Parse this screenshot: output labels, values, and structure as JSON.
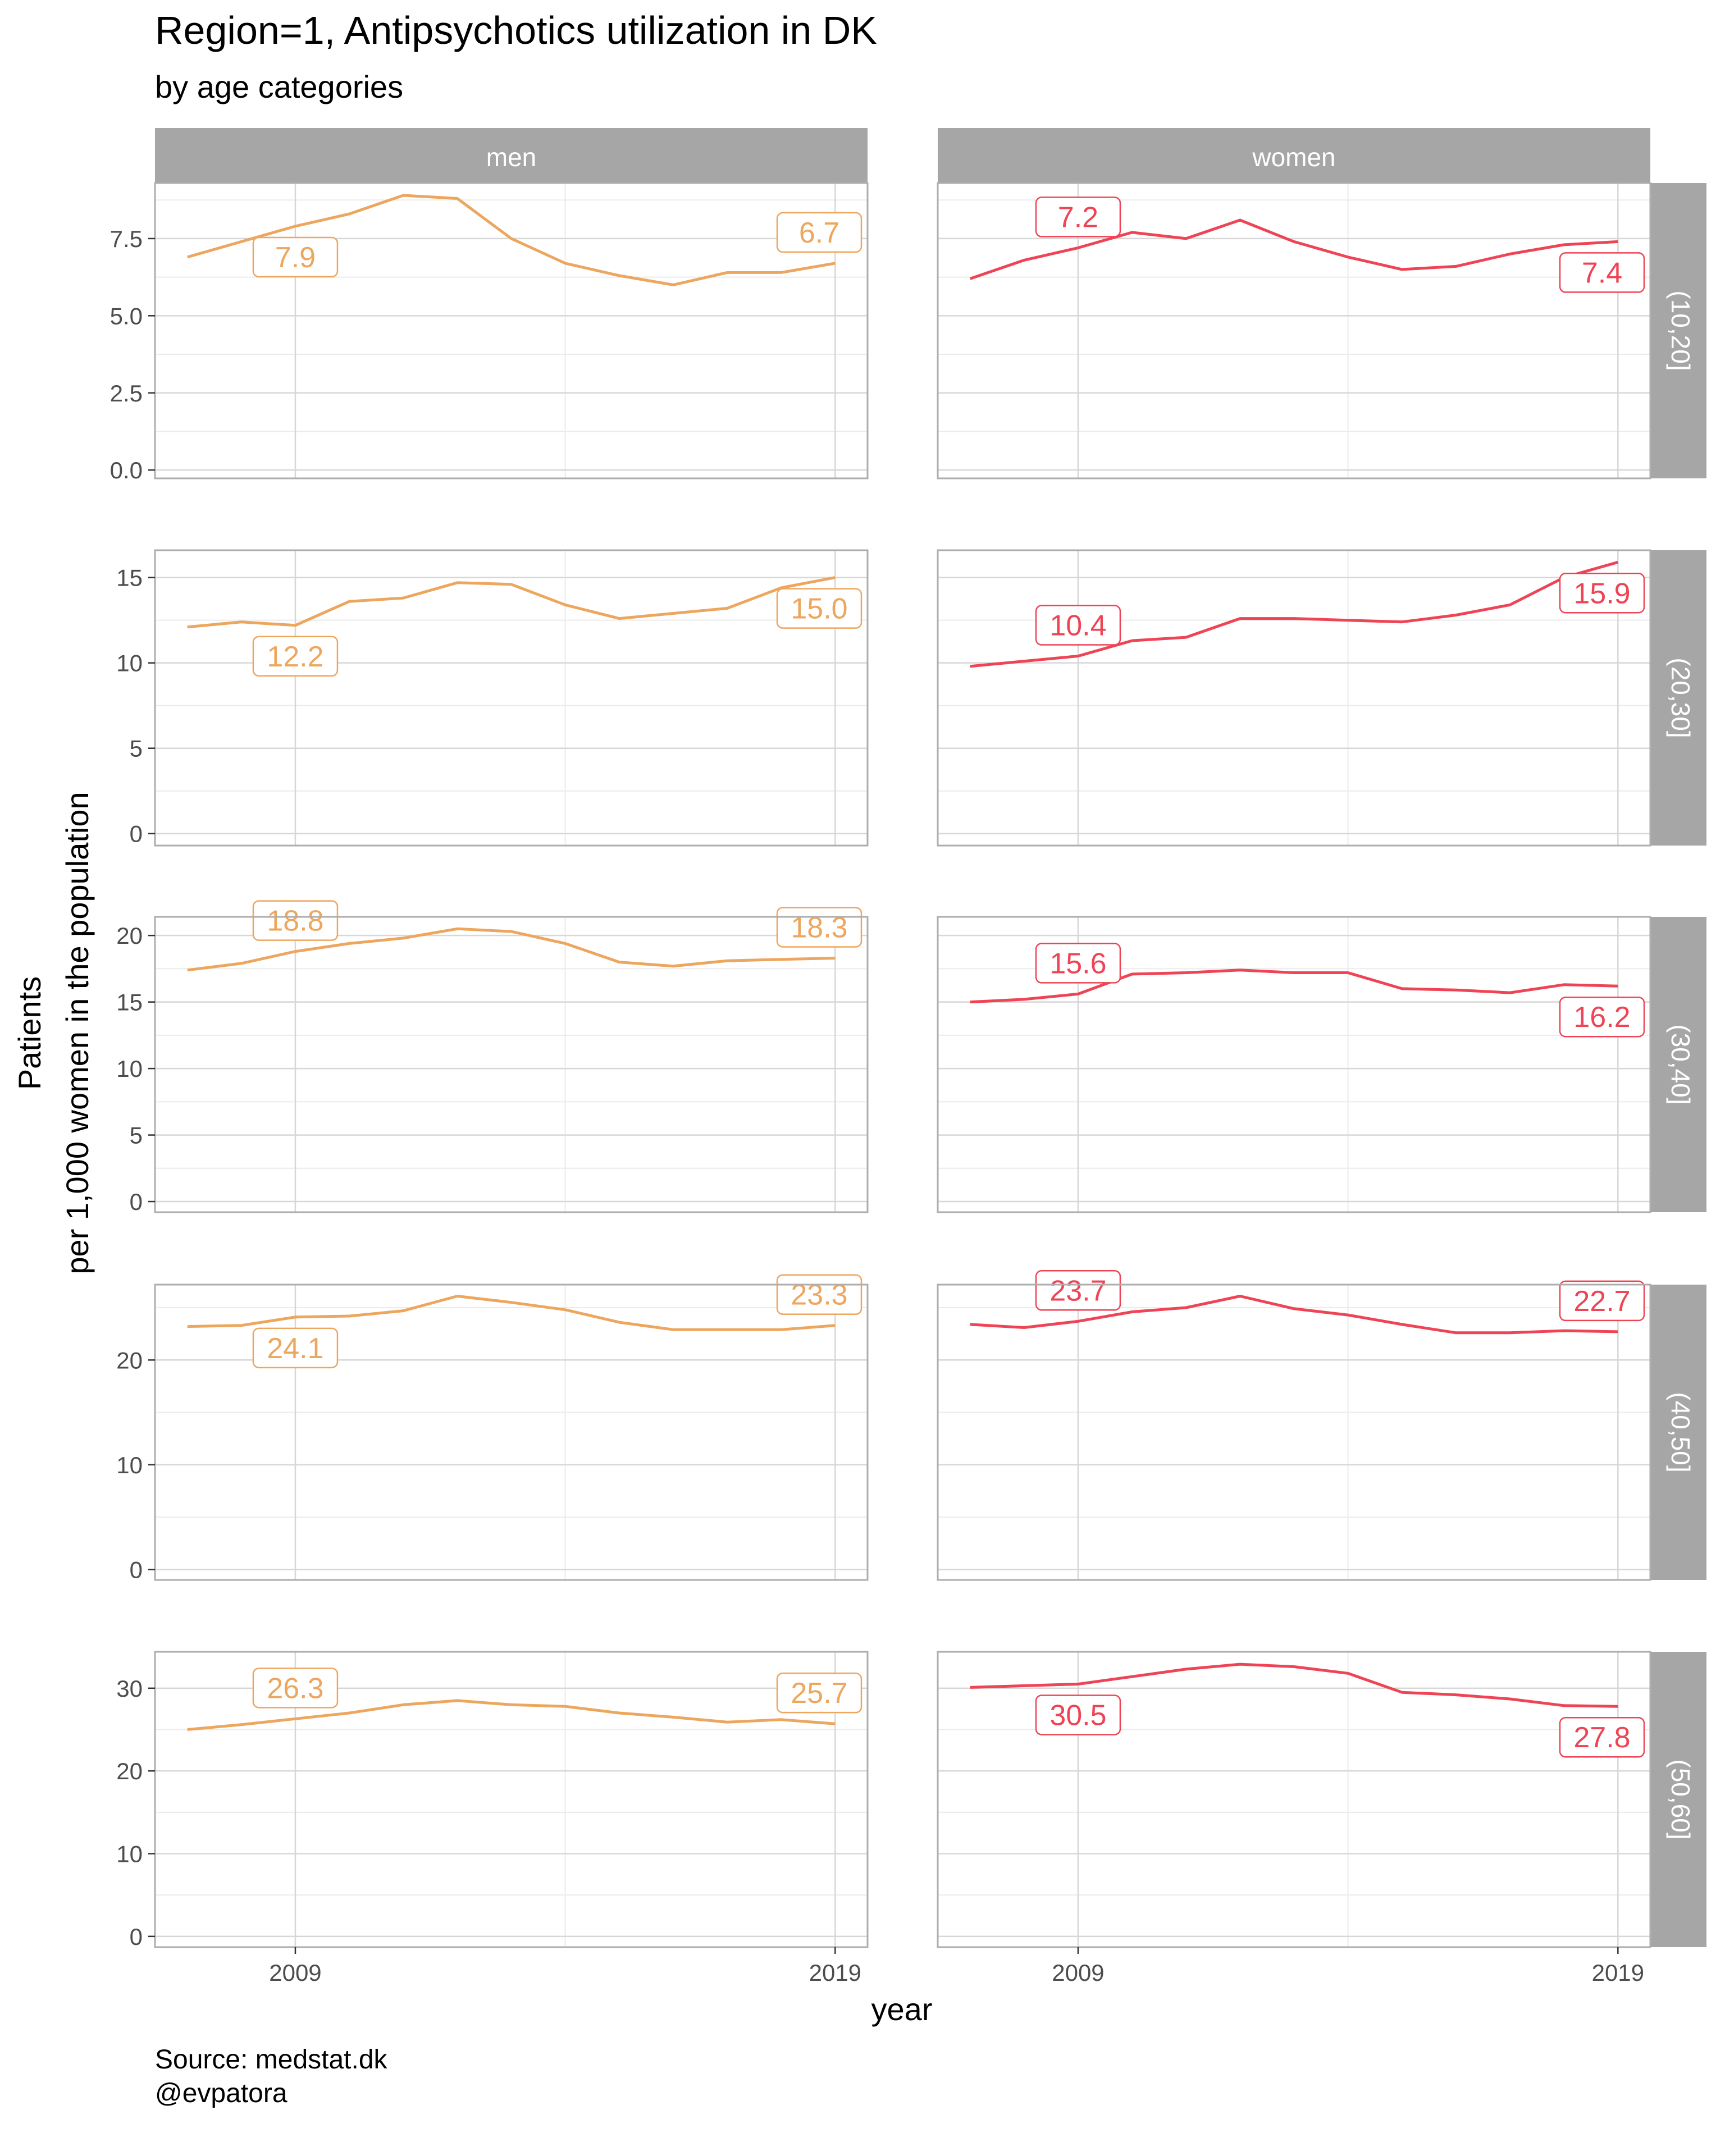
{
  "title": "Region=1, Antipsychotics utilization in DK",
  "subtitle": "by age categories",
  "caption_lines": [
    "Source: medstat.dk",
    "@evpatora"
  ],
  "colors": {
    "men": "#EDA65E",
    "women": "#EE4455",
    "strip_bg": "#A6A6A6",
    "strip_text": "#FFFFFF",
    "grid_major": "#D7D7D7",
    "grid_minor": "#EBEBEB",
    "panel_border": "#ADADAD",
    "axis_text": "#4D4D4D"
  },
  "chart_data": {
    "type": "line",
    "facet_columns": [
      "men",
      "women"
    ],
    "facet_rows": [
      "(10,20]",
      "(20,30]",
      "(30,40]",
      "(40,50]",
      "(50,60]"
    ],
    "xlabel": "year",
    "ylabel_lines": [
      "Patients",
      "per 1,000 women in the population"
    ],
    "x": [
      2007,
      2008,
      2009,
      2010,
      2011,
      2012,
      2013,
      2014,
      2015,
      2016,
      2017,
      2018,
      2019
    ],
    "x_ticks": [
      2009,
      2019
    ],
    "x_minor_ticks": [
      2014
    ],
    "xlim": [
      2006.4,
      2019.6
    ],
    "grid": true,
    "rows": [
      {
        "label": "(10,20]",
        "ylim": [
          -0.27,
          9.3
        ],
        "y_ticks": [
          0.0,
          2.5,
          5.0,
          7.5
        ],
        "y_tick_labels": [
          "0.0",
          "2.5",
          "5.0",
          "7.5"
        ],
        "series": [
          {
            "name": "men",
            "values": [
              6.9,
              7.4,
              7.9,
              8.3,
              8.9,
              8.8,
              7.5,
              6.7,
              6.3,
              6.0,
              6.4,
              6.4,
              6.7
            ],
            "labels": [
              {
                "x": 2009,
                "text": "7.9",
                "pos": "below"
              },
              {
                "x": 2019,
                "text": "6.7",
                "pos": "above"
              }
            ]
          },
          {
            "name": "women",
            "values": [
              6.2,
              6.8,
              7.2,
              7.7,
              7.5,
              8.1,
              7.4,
              6.9,
              6.5,
              6.6,
              7.0,
              7.3,
              7.4
            ],
            "labels": [
              {
                "x": 2009,
                "text": "7.2",
                "pos": "above"
              },
              {
                "x": 2019,
                "text": "7.4",
                "pos": "below"
              }
            ]
          }
        ]
      },
      {
        "label": "(20,30]",
        "ylim": [
          -0.7,
          16.6
        ],
        "y_ticks": [
          0,
          5,
          10,
          15
        ],
        "y_tick_labels": [
          "0",
          "5",
          "10",
          "15"
        ],
        "series": [
          {
            "name": "men",
            "values": [
              12.1,
              12.4,
              12.2,
              13.6,
              13.8,
              14.7,
              14.6,
              13.4,
              12.6,
              12.9,
              13.2,
              14.4,
              15.0
            ],
            "labels": [
              {
                "x": 2009,
                "text": "12.2",
                "pos": "below"
              },
              {
                "x": 2019,
                "text": "15.0",
                "pos": "below"
              }
            ]
          },
          {
            "name": "women",
            "values": [
              9.8,
              10.1,
              10.4,
              11.3,
              11.5,
              12.6,
              12.6,
              12.5,
              12.4,
              12.8,
              13.4,
              15.0,
              15.9
            ],
            "labels": [
              {
                "x": 2009,
                "text": "10.4",
                "pos": "above"
              },
              {
                "x": 2019,
                "text": "15.9",
                "pos": "below"
              }
            ]
          }
        ]
      },
      {
        "label": "(30,40]",
        "ylim": [
          -0.8,
          21.4
        ],
        "y_ticks": [
          0,
          5,
          10,
          15,
          20
        ],
        "y_tick_labels": [
          "0",
          "5",
          "10",
          "15",
          "20"
        ],
        "series": [
          {
            "name": "men",
            "values": [
              17.4,
              17.9,
              18.8,
              19.4,
              19.8,
              20.5,
              20.3,
              19.4,
              18.0,
              17.7,
              18.1,
              18.2,
              18.3
            ],
            "labels": [
              {
                "x": 2009,
                "text": "18.8",
                "pos": "above"
              },
              {
                "x": 2019,
                "text": "18.3",
                "pos": "above"
              }
            ]
          },
          {
            "name": "women",
            "values": [
              15.0,
              15.2,
              15.6,
              17.1,
              17.2,
              17.4,
              17.2,
              17.2,
              16.0,
              15.9,
              15.7,
              16.3,
              16.2
            ],
            "labels": [
              {
                "x": 2009,
                "text": "15.6",
                "pos": "above"
              },
              {
                "x": 2019,
                "text": "16.2",
                "pos": "below"
              }
            ]
          }
        ]
      },
      {
        "label": "(40,50]",
        "ylim": [
          -1.0,
          27.2
        ],
        "y_ticks": [
          0,
          10,
          20
        ],
        "y_tick_labels": [
          "0",
          "10",
          "20"
        ],
        "series": [
          {
            "name": "men",
            "values": [
              23.2,
              23.3,
              24.1,
              24.2,
              24.7,
              26.1,
              25.5,
              24.8,
              23.6,
              22.9,
              22.9,
              22.9,
              23.3
            ],
            "labels": [
              {
                "x": 2009,
                "text": "24.1",
                "pos": "below"
              },
              {
                "x": 2019,
                "text": "23.3",
                "pos": "above"
              }
            ]
          },
          {
            "name": "women",
            "values": [
              23.4,
              23.1,
              23.7,
              24.6,
              25.0,
              26.1,
              24.9,
              24.3,
              23.4,
              22.6,
              22.6,
              22.8,
              22.7
            ],
            "labels": [
              {
                "x": 2009,
                "text": "23.7",
                "pos": "above"
              },
              {
                "x": 2019,
                "text": "22.7",
                "pos": "above"
              }
            ]
          }
        ]
      },
      {
        "label": "(50,60]",
        "ylim": [
          -1.3,
          34.4
        ],
        "y_ticks": [
          0,
          10,
          20,
          30
        ],
        "y_tick_labels": [
          "0",
          "10",
          "20",
          "30"
        ],
        "series": [
          {
            "name": "men",
            "values": [
              25.0,
              25.6,
              26.3,
              27.0,
              28.0,
              28.5,
              28.0,
              27.8,
              27.0,
              26.5,
              25.9,
              26.2,
              25.7
            ],
            "labels": [
              {
                "x": 2009,
                "text": "26.3",
                "pos": "above"
              },
              {
                "x": 2019,
                "text": "25.7",
                "pos": "above"
              }
            ]
          },
          {
            "name": "women",
            "values": [
              30.1,
              30.3,
              30.5,
              31.4,
              32.3,
              32.9,
              32.6,
              31.8,
              29.5,
              29.2,
              28.7,
              27.9,
              27.8
            ],
            "labels": [
              {
                "x": 2009,
                "text": "30.5",
                "pos": "below"
              },
              {
                "x": 2019,
                "text": "27.8",
                "pos": "below"
              }
            ]
          }
        ]
      }
    ]
  }
}
